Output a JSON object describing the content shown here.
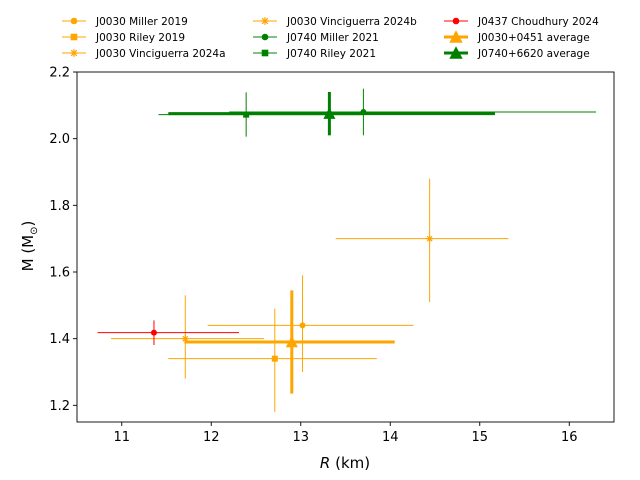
{
  "chart_data": {
    "type": "scatter",
    "xlabel_italic": "R",
    "xlabel_unit": " (km)",
    "ylabel_main": "M (M",
    "ylabel_sub": "⊙",
    "ylabel_close": ")",
    "xlim": [
      10.5,
      16.5
    ],
    "ylim": [
      1.15,
      2.2
    ],
    "xticks": [
      11,
      12,
      13,
      14,
      15,
      16
    ],
    "yticks": [
      1.2,
      1.4,
      1.6,
      1.8,
      2.0,
      2.2
    ],
    "grid": false,
    "legend_placement": "top, above plot, 3 columns",
    "colors": {
      "J0030": "#ffa500",
      "J0740": "#008000",
      "J0437": "#ff0000"
    },
    "series": [
      {
        "name": "J0030 Miller 2019",
        "color": "#ffa500",
        "marker": "circle",
        "x": 13.02,
        "y": 1.44,
        "xerr": [
          1.06,
          1.24
        ],
        "yerr": [
          0.14,
          0.15
        ],
        "lw": 1,
        "ms": 6
      },
      {
        "name": "J0030 Riley 2019",
        "color": "#ffa500",
        "marker": "square",
        "x": 12.71,
        "y": 1.34,
        "xerr": [
          1.19,
          1.14
        ],
        "yerr": [
          0.16,
          0.15
        ],
        "lw": 1,
        "ms": 6
      },
      {
        "name": "J0030 Vinciguerra 2024a",
        "color": "#ffa500",
        "marker": "x-star",
        "x": 11.71,
        "y": 1.4,
        "xerr": [
          0.83,
          0.88
        ],
        "yerr": [
          0.12,
          0.13
        ],
        "lw": 1,
        "ms": 7
      },
      {
        "name": "J0030 Vinciguerra 2024b",
        "color": "#ffa500",
        "marker": "x-star",
        "x": 14.44,
        "y": 1.7,
        "xerr": [
          1.05,
          0.88
        ],
        "yerr": [
          0.19,
          0.18
        ],
        "lw": 1,
        "ms": 7
      },
      {
        "name": "J0740 Miller 2021",
        "color": "#008000",
        "marker": "circle",
        "x": 13.7,
        "y": 2.08,
        "xerr": [
          1.5,
          2.6
        ],
        "yerr": [
          0.07,
          0.07
        ],
        "lw": 1,
        "ms": 6
      },
      {
        "name": "J0740 Riley 2021",
        "color": "#008000",
        "marker": "square",
        "x": 12.39,
        "y": 2.072,
        "xerr": [
          0.98,
          1.3
        ],
        "yerr": [
          0.066,
          0.067
        ],
        "lw": 1,
        "ms": 6
      },
      {
        "name": "J0437 Choudhury 2024",
        "color": "#ff0000",
        "marker": "circle",
        "x": 11.36,
        "y": 1.418,
        "xerr": [
          0.63,
          0.95
        ],
        "yerr": [
          0.037,
          0.037
        ],
        "lw": 1,
        "ms": 6
      },
      {
        "name": "J0030+0451 average",
        "color": "#ffa500",
        "marker": "triangle",
        "x": 12.9,
        "y": 1.39,
        "xerr": [
          1.2,
          1.15
        ],
        "yerr": [
          0.155,
          0.155
        ],
        "lw": 3,
        "ms": 11
      },
      {
        "name": "J0740+6620 average",
        "color": "#008000",
        "marker": "triangle",
        "x": 13.32,
        "y": 2.075,
        "xerr": [
          1.8,
          1.85
        ],
        "yerr": [
          0.065,
          0.065
        ],
        "lw": 3,
        "ms": 11
      }
    ]
  }
}
